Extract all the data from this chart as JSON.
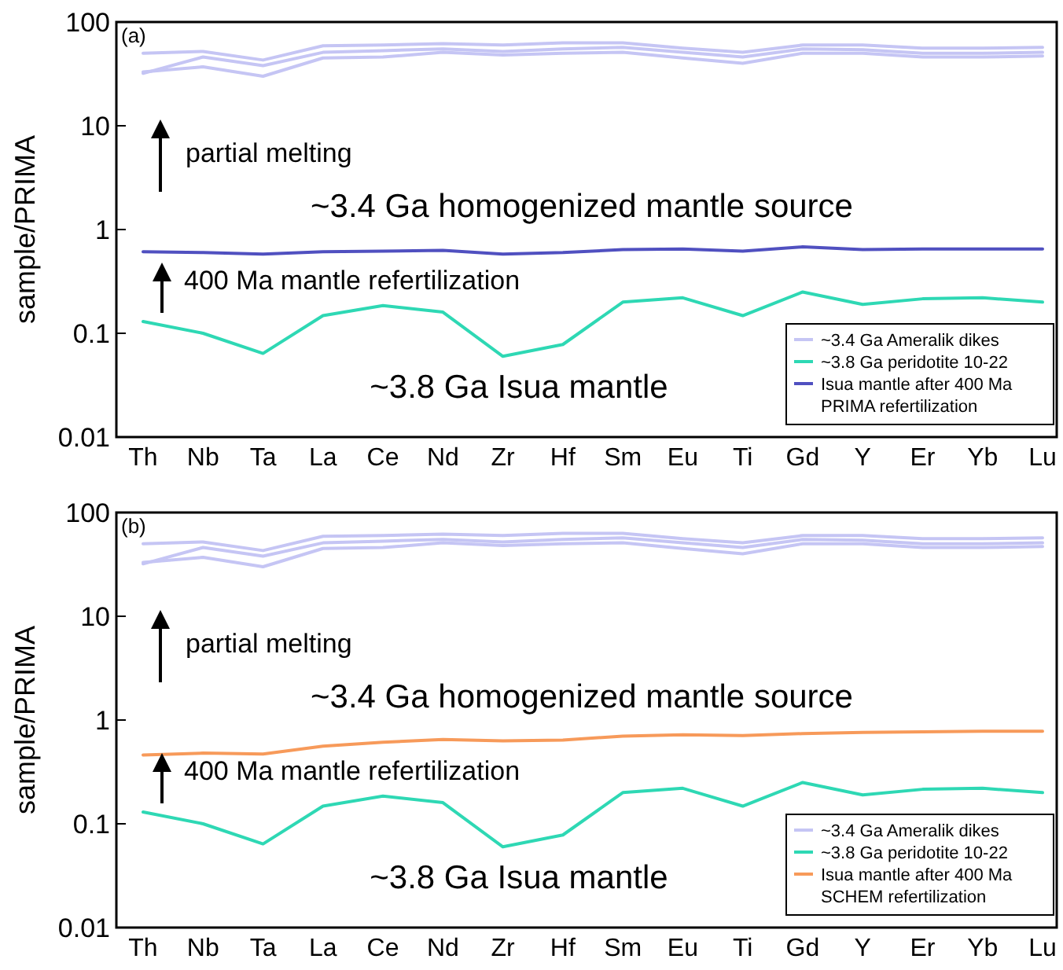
{
  "chart_data": [
    {
      "type": "line",
      "ylabel": "sample/PRIMA",
      "log": "y",
      "legend": "bottom right",
      "categories": [
        "Th",
        "Nb",
        "Ta",
        "La",
        "Ce",
        "Nd",
        "Zr",
        "Hf",
        "Sm",
        "Eu",
        "Ti",
        "Gd",
        "Y",
        "Er",
        "Yb",
        "Lu"
      ],
      "ylim": [
        0.01,
        100
      ],
      "yticks": [
        0.01,
        0.1,
        1,
        10,
        100
      ],
      "annotations": [
        "(a)",
        "partial melting",
        "~3.4 Ga homogenized mantle source",
        "400 Ma mantle refertilization",
        "~3.8 Ga Isua mantle"
      ],
      "series": [
        {
          "name": "~3.4 Ga Ameralik dikes",
          "color": "#c5c5f4",
          "values": [
            50,
            52,
            43,
            59,
            60,
            62,
            60,
            63,
            63,
            56,
            51,
            60,
            60,
            56,
            56,
            57
          ]
        },
        {
          "color": "#c5c5f4",
          "values": [
            32,
            46,
            38,
            51,
            53,
            55,
            52,
            55,
            57,
            51,
            46,
            55,
            54,
            50,
            50,
            51
          ]
        },
        {
          "color": "#c5c5f4",
          "values": [
            33,
            37,
            30,
            45,
            46,
            51,
            48,
            50,
            51,
            45,
            40,
            50,
            50,
            46,
            46,
            47
          ]
        },
        {
          "name": "~3.8 Ga peridotite 10-22",
          "color": "#2ed8b4",
          "values": [
            0.13,
            0.1,
            0.064,
            0.148,
            0.185,
            0.16,
            0.06,
            0.078,
            0.2,
            0.22,
            0.148,
            0.25,
            0.19,
            0.215,
            0.22,
            0.2
          ]
        },
        {
          "name": "Isua mantle after 400 Ma PRIMA refertilization",
          "color": "#5050c0",
          "values": [
            0.61,
            0.6,
            0.58,
            0.61,
            0.62,
            0.63,
            0.58,
            0.6,
            0.64,
            0.65,
            0.62,
            0.68,
            0.64,
            0.65,
            0.65,
            0.65
          ]
        }
      ]
    },
    {
      "type": "line",
      "ylabel": "sample/PRIMA",
      "log": "y",
      "legend": "bottom right",
      "categories": [
        "Th",
        "Nb",
        "Ta",
        "La",
        "Ce",
        "Nd",
        "Zr",
        "Hf",
        "Sm",
        "Eu",
        "Ti",
        "Gd",
        "Y",
        "Er",
        "Yb",
        "Lu"
      ],
      "ylim": [
        0.01,
        100
      ],
      "yticks": [
        0.01,
        0.1,
        1,
        10,
        100
      ],
      "annotations": [
        "(b)",
        "partial melting",
        "~3.4 Ga homogenized mantle source",
        "400 Ma mantle refertilization",
        "~3.8 Ga Isua mantle"
      ],
      "series": [
        {
          "name": "~3.4 Ga Ameralik dikes",
          "color": "#c5c5f4",
          "values": [
            50,
            52,
            43,
            59,
            60,
            62,
            60,
            63,
            63,
            56,
            51,
            60,
            60,
            56,
            56,
            57
          ]
        },
        {
          "color": "#c5c5f4",
          "values": [
            32,
            46,
            38,
            51,
            53,
            55,
            52,
            55,
            57,
            51,
            46,
            55,
            54,
            50,
            50,
            51
          ]
        },
        {
          "color": "#c5c5f4",
          "values": [
            33,
            37,
            30,
            45,
            46,
            51,
            48,
            50,
            51,
            45,
            40,
            50,
            50,
            46,
            46,
            47
          ]
        },
        {
          "name": "~3.8 Ga peridotite 10-22",
          "color": "#2ed8b4",
          "values": [
            0.13,
            0.1,
            0.064,
            0.148,
            0.185,
            0.16,
            0.06,
            0.078,
            0.2,
            0.22,
            0.148,
            0.25,
            0.19,
            0.215,
            0.22,
            0.2
          ]
        },
        {
          "name": "Isua mantle after 400 Ma SCHEM refertilization",
          "color": "#f79a5a",
          "values": [
            0.46,
            0.48,
            0.47,
            0.56,
            0.61,
            0.65,
            0.63,
            0.64,
            0.7,
            0.72,
            0.71,
            0.74,
            0.76,
            0.77,
            0.78,
            0.78
          ]
        }
      ]
    }
  ]
}
